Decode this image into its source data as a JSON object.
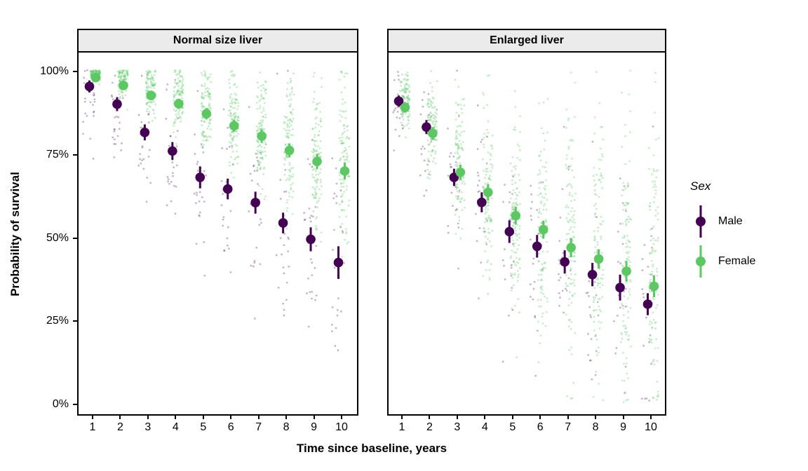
{
  "chart_data": {
    "type": "scatter",
    "title": "",
    "xlabel": "Time since baseline, years",
    "ylabel": "Probability of survival",
    "x_ticks": [
      "1",
      "2",
      "3",
      "4",
      "5",
      "6",
      "7",
      "8",
      "9",
      "10"
    ],
    "y_ticks": [
      {
        "label": "100%",
        "value": 100
      },
      {
        "label": "75%",
        "value": 75
      },
      {
        "label": "50%",
        "value": 50
      },
      {
        "label": "25%",
        "value": 25
      },
      {
        "label": "0%",
        "value": 0
      }
    ],
    "ylim": [
      -4.2,
      104.2
    ],
    "grid": "off",
    "legend": {
      "title": "Sex",
      "position": "right",
      "entries": [
        {
          "label": "Male",
          "color": "#440154"
        },
        {
          "label": "Female",
          "color": "#5DC863"
        }
      ]
    },
    "facets": [
      {
        "label": "Normal size liver",
        "series": [
          {
            "name": "Male",
            "color": "#440154",
            "dodge": -4.5,
            "x": [
              1,
              2,
              3,
              4,
              5,
              6,
              7,
              8,
              9,
              10
            ],
            "values": [
              95.5,
              90.2,
              81.7,
              76.1,
              68.2,
              64.7,
              60.6,
              54.5,
              49.6,
              42.6
            ],
            "lo": [
              93.7,
              88.1,
              79.3,
              73.4,
              64.9,
              61.6,
              57.3,
              51.4,
              46.0,
              37.7
            ],
            "hi": [
              97.3,
              92.3,
              84.1,
              78.8,
              71.5,
              67.8,
              63.9,
              57.6,
              53.2,
              47.5
            ],
            "jitter": {
              "n": 26,
              "sd": [
                6,
                8,
                10,
                11,
                12,
                13,
                14,
                15,
                16,
                17
              ],
              "mean_offset": -2,
              "x_offset": -5,
              "x_halfwidth": 9,
              "opacity": 0.3
            }
          },
          {
            "name": "Female",
            "color": "#5DC863",
            "dodge": 4.5,
            "x": [
              1,
              2,
              3,
              4,
              5,
              6,
              7,
              8,
              9,
              10
            ],
            "values": [
              98.2,
              95.8,
              92.8,
              90.3,
              87.3,
              83.7,
              80.6,
              76.3,
              73.0,
              70.1
            ],
            "lo": [
              97.2,
              94.6,
              91.4,
              88.8,
              85.6,
              81.9,
              78.6,
              74.2,
              70.7,
              67.6
            ],
            "hi": [
              99.2,
              97.0,
              94.2,
              91.8,
              89.0,
              85.5,
              82.6,
              78.4,
              75.3,
              72.6
            ],
            "jitter": {
              "n": 110,
              "sd": [
                2,
                3,
                4,
                5,
                6,
                7.5,
                9,
                10.5,
                12,
                13.5
              ],
              "mean_offset": 1.5,
              "x_offset": 4,
              "x_halfwidth": 7,
              "opacity": 0.35
            }
          }
        ]
      },
      {
        "label": "Enlarged liver",
        "series": [
          {
            "name": "Male",
            "color": "#440154",
            "dodge": -4.5,
            "x": [
              1,
              2,
              3,
              4,
              5,
              6,
              7,
              8,
              9,
              10
            ],
            "values": [
              91.1,
              83.3,
              68.2,
              60.7,
              51.9,
              47.5,
              42.8,
              39.0,
              35.1,
              30.1
            ],
            "lo": [
              89.4,
              81.2,
              65.6,
              57.7,
              48.5,
              44.1,
              39.3,
              35.5,
              31.2,
              26.8
            ],
            "hi": [
              92.8,
              85.4,
              70.8,
              63.7,
              55.3,
              50.9,
              46.3,
              42.5,
              39.0,
              33.4
            ],
            "jitter": {
              "n": 24,
              "sd": [
                7,
                9,
                12,
                14,
                15,
                16,
                17,
                18,
                19,
                20
              ],
              "mean_offset": -2,
              "x_offset": -5,
              "x_halfwidth": 9,
              "opacity": 0.3
            }
          },
          {
            "name": "Female",
            "color": "#5DC863",
            "dodge": 4.5,
            "x": [
              1,
              2,
              3,
              4,
              5,
              6,
              7,
              8,
              9,
              10
            ],
            "values": [
              89.2,
              81.4,
              69.7,
              63.7,
              56.7,
              52.5,
              47.1,
              43.7,
              40.0,
              35.5
            ],
            "lo": [
              87.7,
              79.5,
              67.4,
              61.2,
              54.0,
              49.8,
              44.2,
              40.8,
              36.9,
              32.2
            ],
            "hi": [
              90.7,
              83.3,
              72.0,
              66.2,
              59.4,
              55.2,
              50.0,
              46.6,
              43.1,
              38.8
            ],
            "jitter": {
              "n": 110,
              "sd": [
                4,
                6.5,
                10,
                13,
                15,
                17,
                19,
                20,
                21,
                22
              ],
              "mean_offset": 2,
              "x_offset": 4,
              "x_halfwidth": 7,
              "opacity": 0.35
            }
          }
        ]
      }
    ]
  },
  "colors": {
    "strip_bg": "#ebebeb",
    "panel_border": "#000000",
    "text": "#000000",
    "male": "#440154",
    "female": "#5DC863"
  }
}
